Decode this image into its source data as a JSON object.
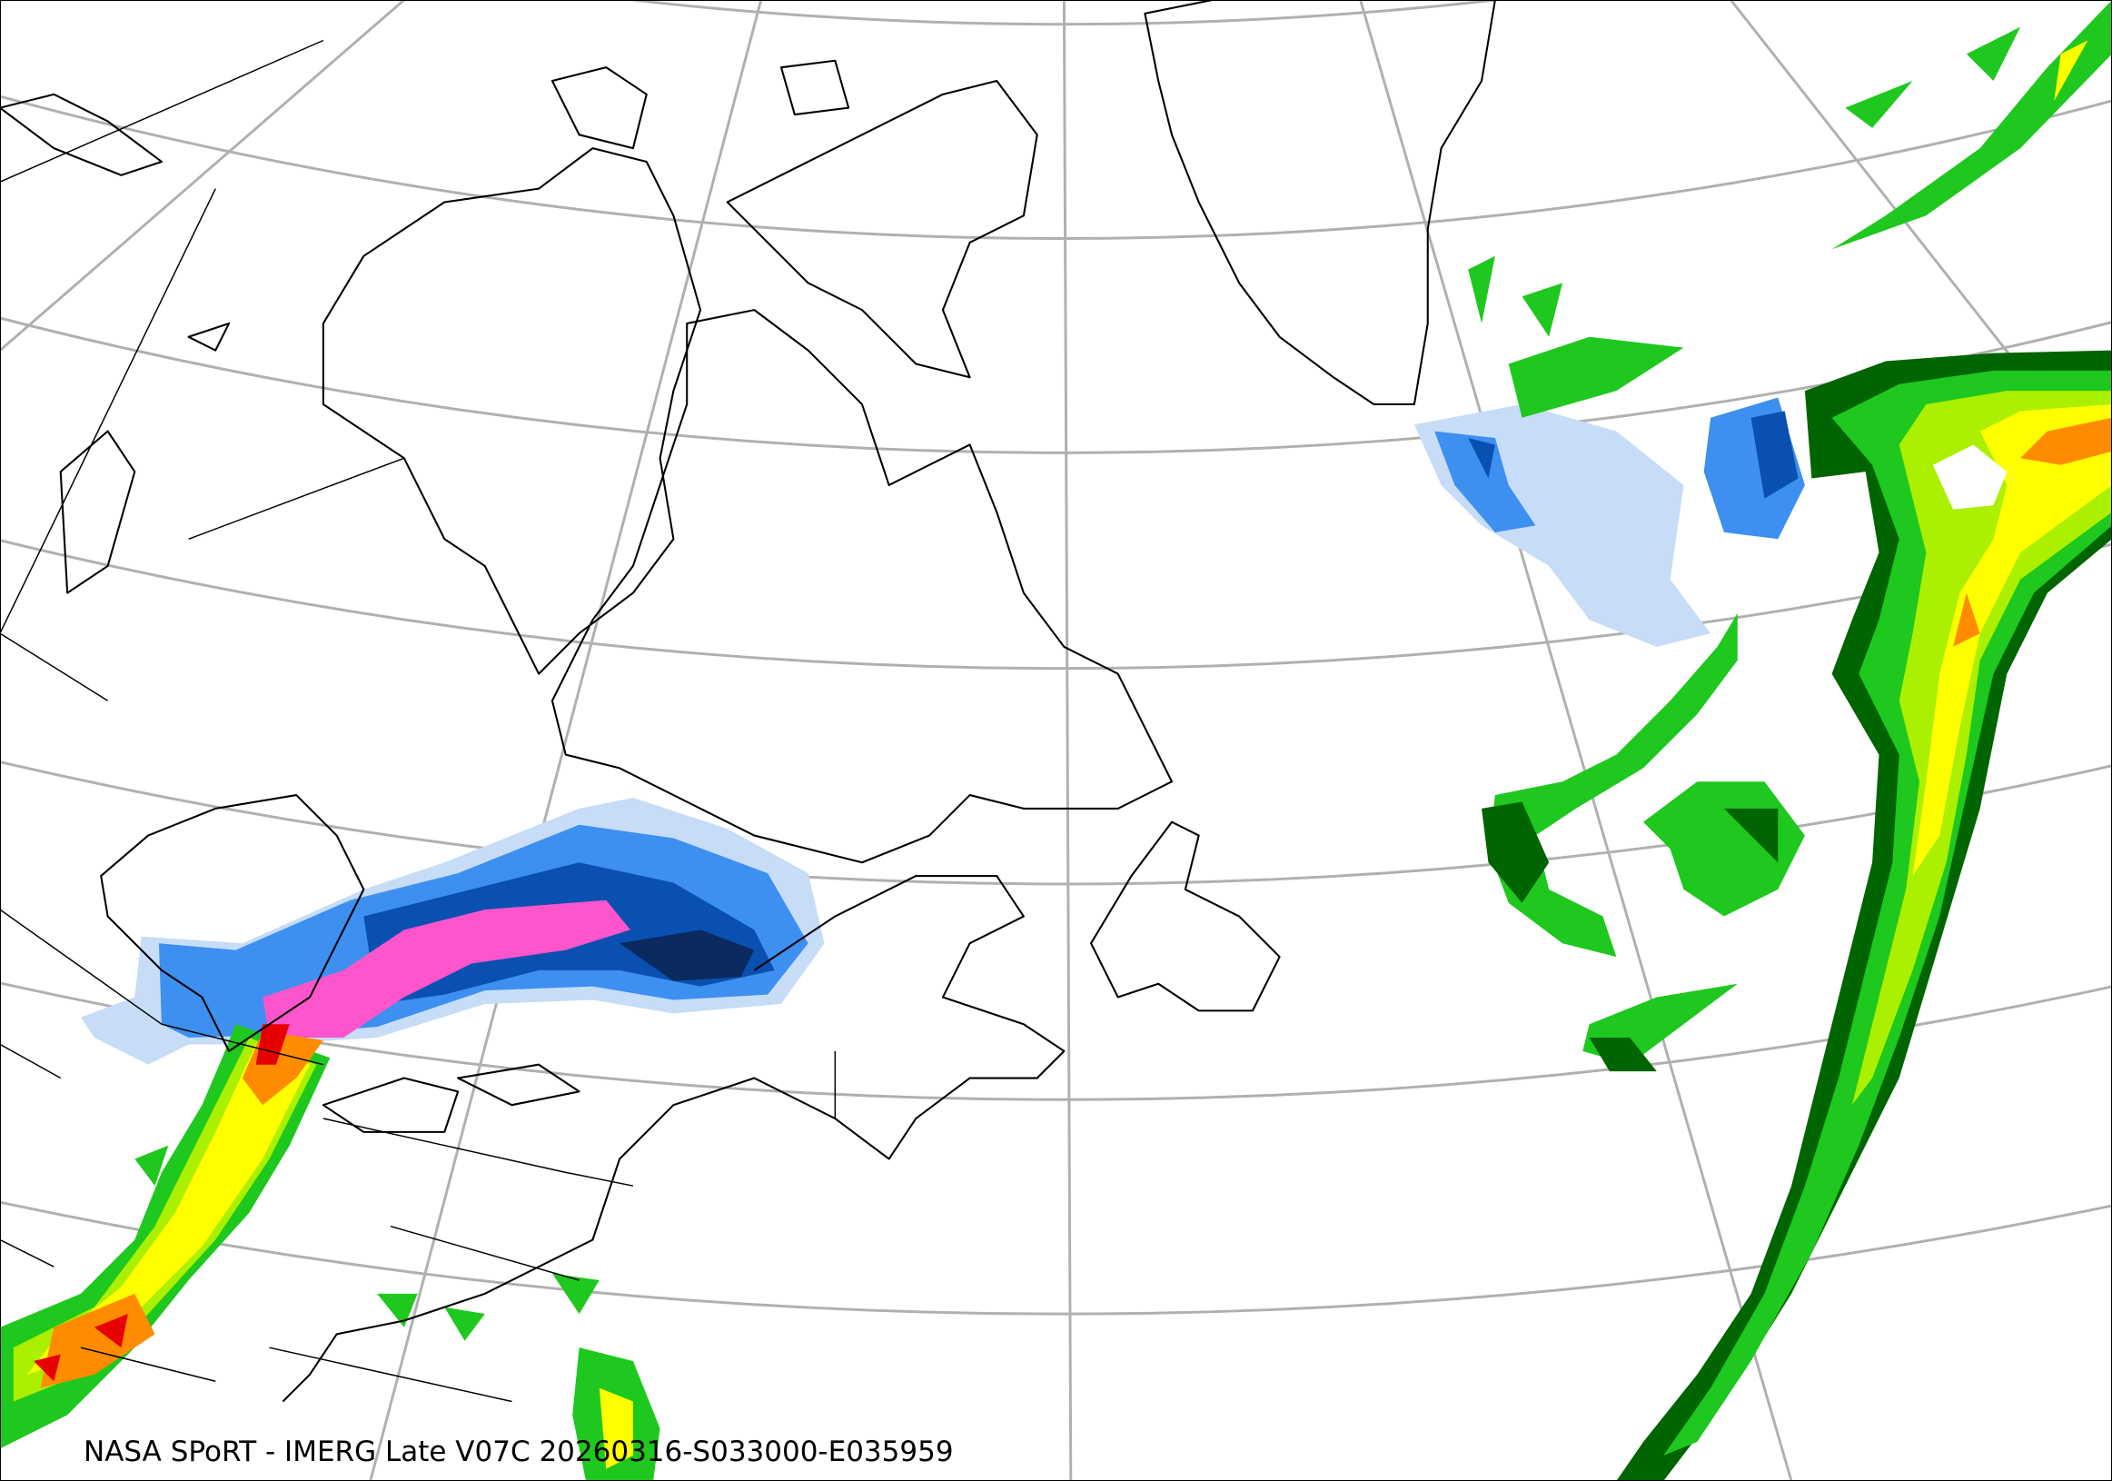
{
  "caption": "NASA SPoRT - IMERG Late V07C 20260316-S033000-E035959",
  "colors": {
    "coastline": "#000000",
    "graticule": "#b0b0b0",
    "snow_light": "#c6dcf7",
    "snow_mid": "#3d8ff0",
    "snow_dark": "#0a50b0",
    "snow_darkest": "#0a2a60",
    "snow_heavy": "#ff55cc",
    "rain_dark_green": "#006400",
    "rain_green": "#1ec81e",
    "rain_light_green": "#aaf000",
    "rain_yellow": "#ffff00",
    "rain_orange": "#ff8c00",
    "rain_red": "#e60000"
  }
}
